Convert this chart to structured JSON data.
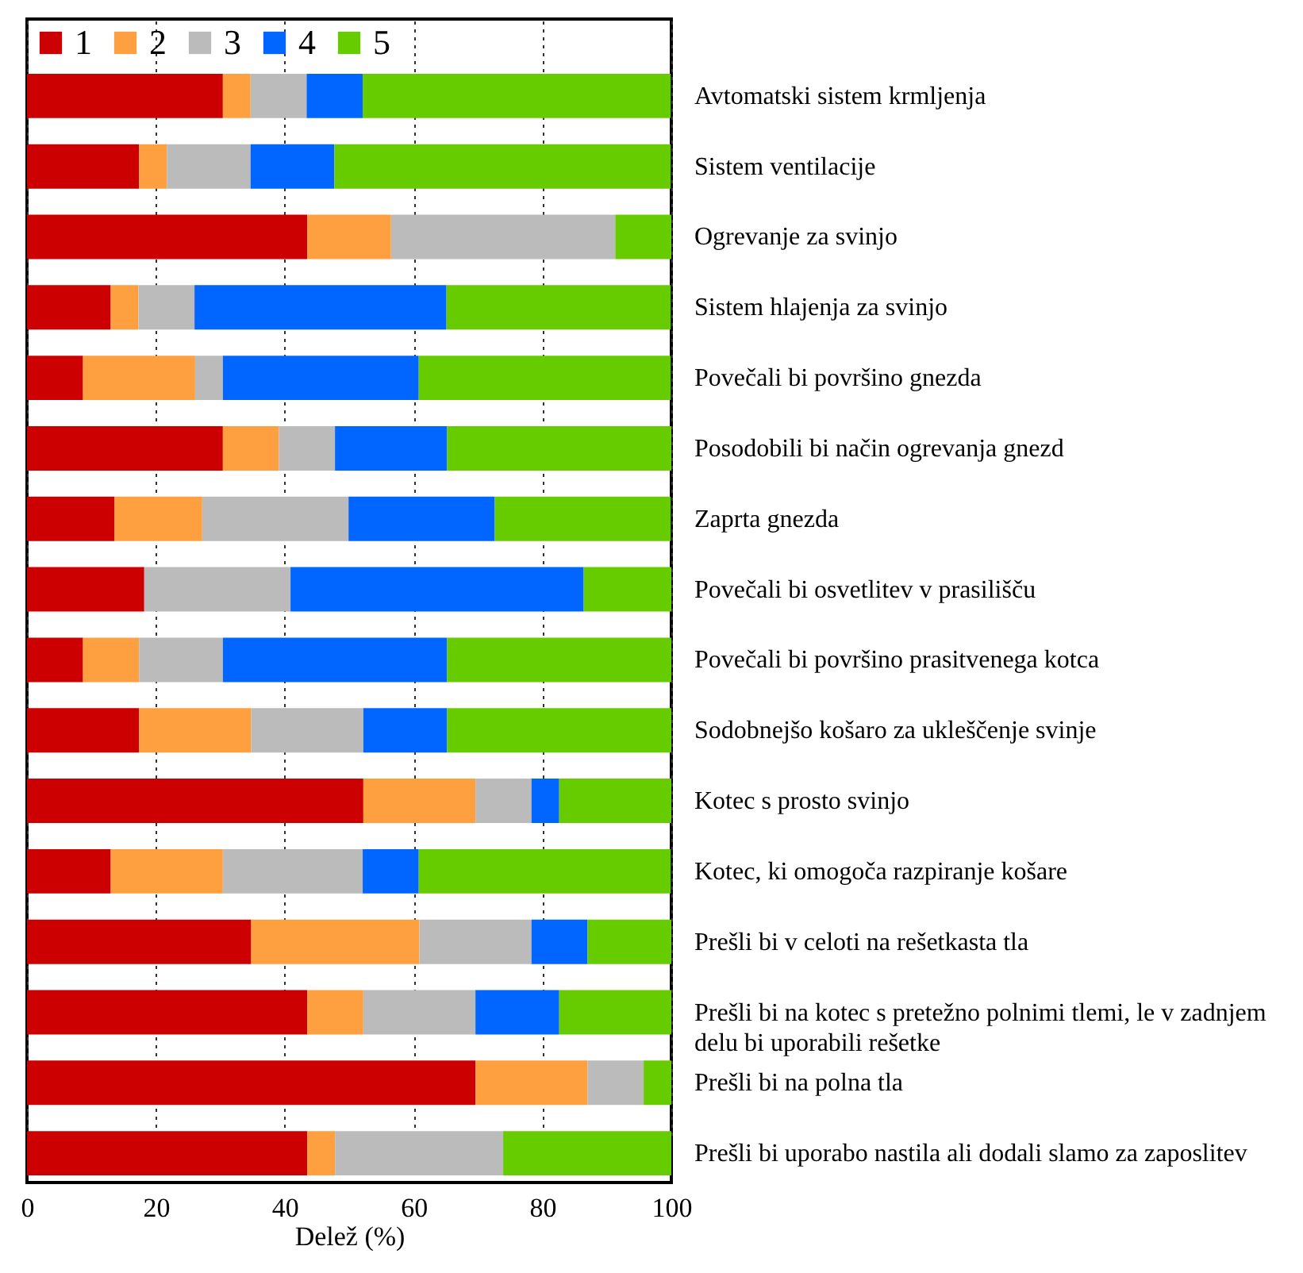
{
  "chart_data": {
    "type": "bar",
    "orientation": "horizontal",
    "stacked": true,
    "xlabel": "Delež (%)",
    "xlim": [
      0,
      100
    ],
    "xticks": [
      0,
      20,
      40,
      60,
      80,
      100
    ],
    "grid": "x",
    "legend": "top left",
    "categories": [
      "Avtomatski sistem krmljenja",
      "Sistem ventilacije",
      "Ogrevanje za svinjo",
      "Sistem hlajenja za svinjo",
      "Povečali bi površino gnezda",
      "Posodobili bi način ogrevanja gnezd",
      "Zaprta gnezda",
      "Povečali bi osvetlitev v prasilišču",
      "Povečali bi površino prasitvenega kotca",
      "Sodobnejšo košaro za ukleščenje svinje",
      "Kotec s prosto svinjo",
      "Kotec, ki omogoča razpiranje košare",
      "Prešli bi v celoti na rešetkasta tla",
      "Prešli bi na kotec s pretežno polnimi tlemi, le v zadnjem delu bi uporabili rešetke",
      "Prešli bi na polna tla",
      "Prešli bi uporabo nastila ali dodali slamo za zaposlitev"
    ],
    "series": [
      {
        "name": "1",
        "color": "#cc0000",
        "values": [
          30.4,
          17.4,
          43.5,
          13.0,
          8.7,
          30.4,
          13.6,
          18.2,
          8.7,
          17.4,
          52.2,
          13.0,
          34.8,
          43.5,
          69.6,
          43.5
        ]
      },
      {
        "name": "2",
        "color": "#ffa040",
        "values": [
          4.3,
          4.3,
          13.0,
          4.3,
          17.4,
          8.7,
          13.6,
          0,
          8.7,
          17.4,
          17.4,
          17.4,
          26.1,
          8.7,
          17.4,
          4.3
        ]
      },
      {
        "name": "3",
        "color": "#bbbbbb",
        "values": [
          8.7,
          13.0,
          34.8,
          8.7,
          4.3,
          8.7,
          22.7,
          22.7,
          13.0,
          17.4,
          8.7,
          21.7,
          17.4,
          17.4,
          8.7,
          26.1
        ]
      },
      {
        "name": "4",
        "color": "#0066ff",
        "values": [
          8.7,
          13.0,
          0,
          39.1,
          30.4,
          17.4,
          22.7,
          45.5,
          34.8,
          13.0,
          4.3,
          8.7,
          8.7,
          13.0,
          0,
          0
        ]
      },
      {
        "name": "5",
        "color": "#66cc00",
        "values": [
          47.8,
          52.2,
          8.7,
          34.8,
          39.1,
          34.8,
          27.3,
          13.6,
          34.8,
          34.8,
          17.4,
          39.1,
          13.0,
          17.4,
          4.3,
          26.1
        ]
      }
    ]
  }
}
